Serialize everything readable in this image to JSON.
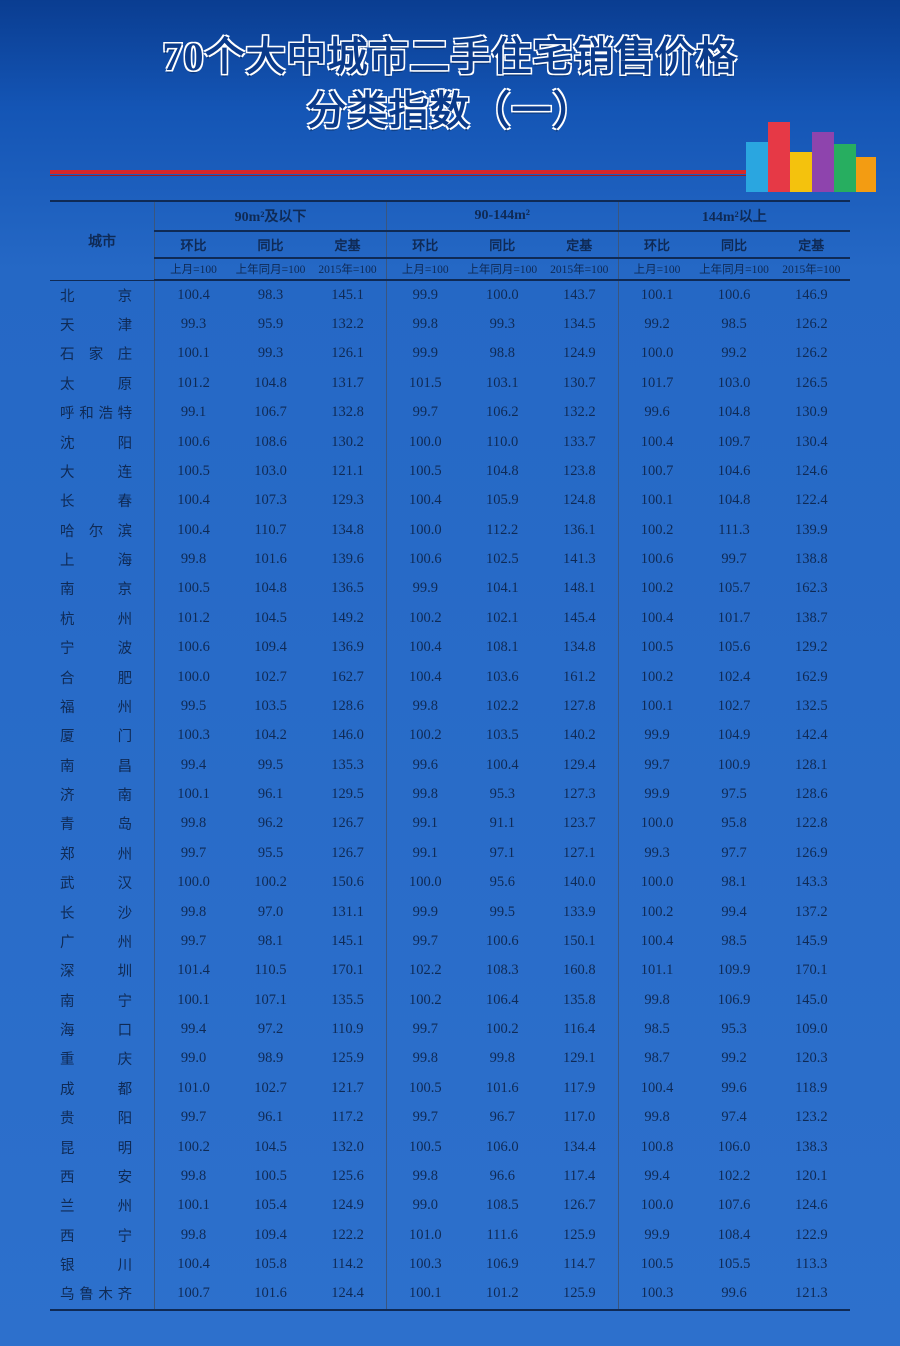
{
  "title_line1": "70个大中城市二手住宅销售价格",
  "title_line2": "分类指数（一）",
  "colors": {
    "bg_top": "#0a3d91",
    "bg_bottom": "#2d70cc",
    "title_fill": "#0a3a8a",
    "title_outline": "#ffffff",
    "divider": "#d62828",
    "table_line": "#0f2a55",
    "table_subline": "#3a567e",
    "text": "#0f2a55"
  },
  "header": {
    "city": "城市",
    "groups": [
      "90m²及以下",
      "90-144m²",
      "144m²以上"
    ],
    "sub": [
      "环比",
      "同比",
      "定基"
    ],
    "sub2": [
      "上月=100",
      "上年同月=100",
      "2015年=100"
    ]
  },
  "rows": [
    {
      "city": "北　京",
      "v": [
        100.4,
        98.3,
        145.1,
        99.9,
        100.0,
        143.7,
        100.1,
        100.6,
        146.9
      ]
    },
    {
      "city": "天　津",
      "v": [
        99.3,
        95.9,
        132.2,
        99.8,
        99.3,
        134.5,
        99.2,
        98.5,
        126.2
      ]
    },
    {
      "city": "石家庄",
      "v": [
        100.1,
        99.3,
        126.1,
        99.9,
        98.8,
        124.9,
        100.0,
        99.2,
        126.2
      ]
    },
    {
      "city": "太　原",
      "v": [
        101.2,
        104.8,
        131.7,
        101.5,
        103.1,
        130.7,
        101.7,
        103.0,
        126.5
      ]
    },
    {
      "city": "呼和浩特",
      "v": [
        99.1,
        106.7,
        132.8,
        99.7,
        106.2,
        132.2,
        99.6,
        104.8,
        130.9
      ]
    },
    {
      "city": "沈　阳",
      "v": [
        100.6,
        108.6,
        130.2,
        100.0,
        110.0,
        133.7,
        100.4,
        109.7,
        130.4
      ]
    },
    {
      "city": "大　连",
      "v": [
        100.5,
        103.0,
        121.1,
        100.5,
        104.8,
        123.8,
        100.7,
        104.6,
        124.6
      ]
    },
    {
      "city": "长　春",
      "v": [
        100.4,
        107.3,
        129.3,
        100.4,
        105.9,
        124.8,
        100.1,
        104.8,
        122.4
      ]
    },
    {
      "city": "哈尔滨",
      "v": [
        100.4,
        110.7,
        134.8,
        100.0,
        112.2,
        136.1,
        100.2,
        111.3,
        139.9
      ]
    },
    {
      "city": "上　海",
      "v": [
        99.8,
        101.6,
        139.6,
        100.6,
        102.5,
        141.3,
        100.6,
        99.7,
        138.8
      ]
    },
    {
      "city": "南　京",
      "v": [
        100.5,
        104.8,
        136.5,
        99.9,
        104.1,
        148.1,
        100.2,
        105.7,
        162.3
      ]
    },
    {
      "city": "杭　州",
      "v": [
        101.2,
        104.5,
        149.2,
        100.2,
        102.1,
        145.4,
        100.4,
        101.7,
        138.7
      ]
    },
    {
      "city": "宁　波",
      "v": [
        100.6,
        109.4,
        136.9,
        100.4,
        108.1,
        134.8,
        100.5,
        105.6,
        129.2
      ]
    },
    {
      "city": "合　肥",
      "v": [
        100.0,
        102.7,
        162.7,
        100.4,
        103.6,
        161.2,
        100.2,
        102.4,
        162.9
      ]
    },
    {
      "city": "福　州",
      "v": [
        99.5,
        103.5,
        128.6,
        99.8,
        102.2,
        127.8,
        100.1,
        102.7,
        132.5
      ]
    },
    {
      "city": "厦　门",
      "v": [
        100.3,
        104.2,
        146.0,
        100.2,
        103.5,
        140.2,
        99.9,
        104.9,
        142.4
      ]
    },
    {
      "city": "南　昌",
      "v": [
        99.4,
        99.5,
        135.3,
        99.6,
        100.4,
        129.4,
        99.7,
        100.9,
        128.1
      ]
    },
    {
      "city": "济　南",
      "v": [
        100.1,
        96.1,
        129.5,
        99.8,
        95.3,
        127.3,
        99.9,
        97.5,
        128.6
      ]
    },
    {
      "city": "青　岛",
      "v": [
        99.8,
        96.2,
        126.7,
        99.1,
        91.1,
        123.7,
        100.0,
        95.8,
        122.8
      ]
    },
    {
      "city": "郑　州",
      "v": [
        99.7,
        95.5,
        126.7,
        99.1,
        97.1,
        127.1,
        99.3,
        97.7,
        126.9
      ]
    },
    {
      "city": "武　汉",
      "v": [
        100.0,
        100.2,
        150.6,
        100.0,
        95.6,
        140.0,
        100.0,
        98.1,
        143.3
      ]
    },
    {
      "city": "长　沙",
      "v": [
        99.8,
        97.0,
        131.1,
        99.9,
        99.5,
        133.9,
        100.2,
        99.4,
        137.2
      ]
    },
    {
      "city": "广　州",
      "v": [
        99.7,
        98.1,
        145.1,
        99.7,
        100.6,
        150.1,
        100.4,
        98.5,
        145.9
      ]
    },
    {
      "city": "深　圳",
      "v": [
        101.4,
        110.5,
        170.1,
        102.2,
        108.3,
        160.8,
        101.1,
        109.9,
        170.1
      ]
    },
    {
      "city": "南　宁",
      "v": [
        100.1,
        107.1,
        135.5,
        100.2,
        106.4,
        135.8,
        99.8,
        106.9,
        145.0
      ]
    },
    {
      "city": "海　口",
      "v": [
        99.4,
        97.2,
        110.9,
        99.7,
        100.2,
        116.4,
        98.5,
        95.3,
        109.0
      ]
    },
    {
      "city": "重　庆",
      "v": [
        99.0,
        98.9,
        125.9,
        99.8,
        99.8,
        129.1,
        98.7,
        99.2,
        120.3
      ]
    },
    {
      "city": "成　都",
      "v": [
        101.0,
        102.7,
        121.7,
        100.5,
        101.6,
        117.9,
        100.4,
        99.6,
        118.9
      ]
    },
    {
      "city": "贵　阳",
      "v": [
        99.7,
        96.1,
        117.2,
        99.7,
        96.7,
        117.0,
        99.8,
        97.4,
        123.2
      ]
    },
    {
      "city": "昆　明",
      "v": [
        100.2,
        104.5,
        132.0,
        100.5,
        106.0,
        134.4,
        100.8,
        106.0,
        138.3
      ]
    },
    {
      "city": "西　安",
      "v": [
        99.8,
        100.5,
        125.6,
        99.8,
        96.6,
        117.4,
        99.4,
        102.2,
        120.1
      ]
    },
    {
      "city": "兰　州",
      "v": [
        100.1,
        105.4,
        124.9,
        99.0,
        108.5,
        126.7,
        100.0,
        107.6,
        124.6
      ]
    },
    {
      "city": "西　宁",
      "v": [
        99.8,
        109.4,
        122.2,
        101.0,
        111.6,
        125.9,
        99.9,
        108.4,
        122.9
      ]
    },
    {
      "city": "银　川",
      "v": [
        100.4,
        105.8,
        114.2,
        100.3,
        106.9,
        114.7,
        100.5,
        105.5,
        113.3
      ]
    },
    {
      "city": "乌鲁木齐",
      "v": [
        100.7,
        101.6,
        124.4,
        100.1,
        101.2,
        125.9,
        100.3,
        99.6,
        121.3
      ]
    }
  ]
}
